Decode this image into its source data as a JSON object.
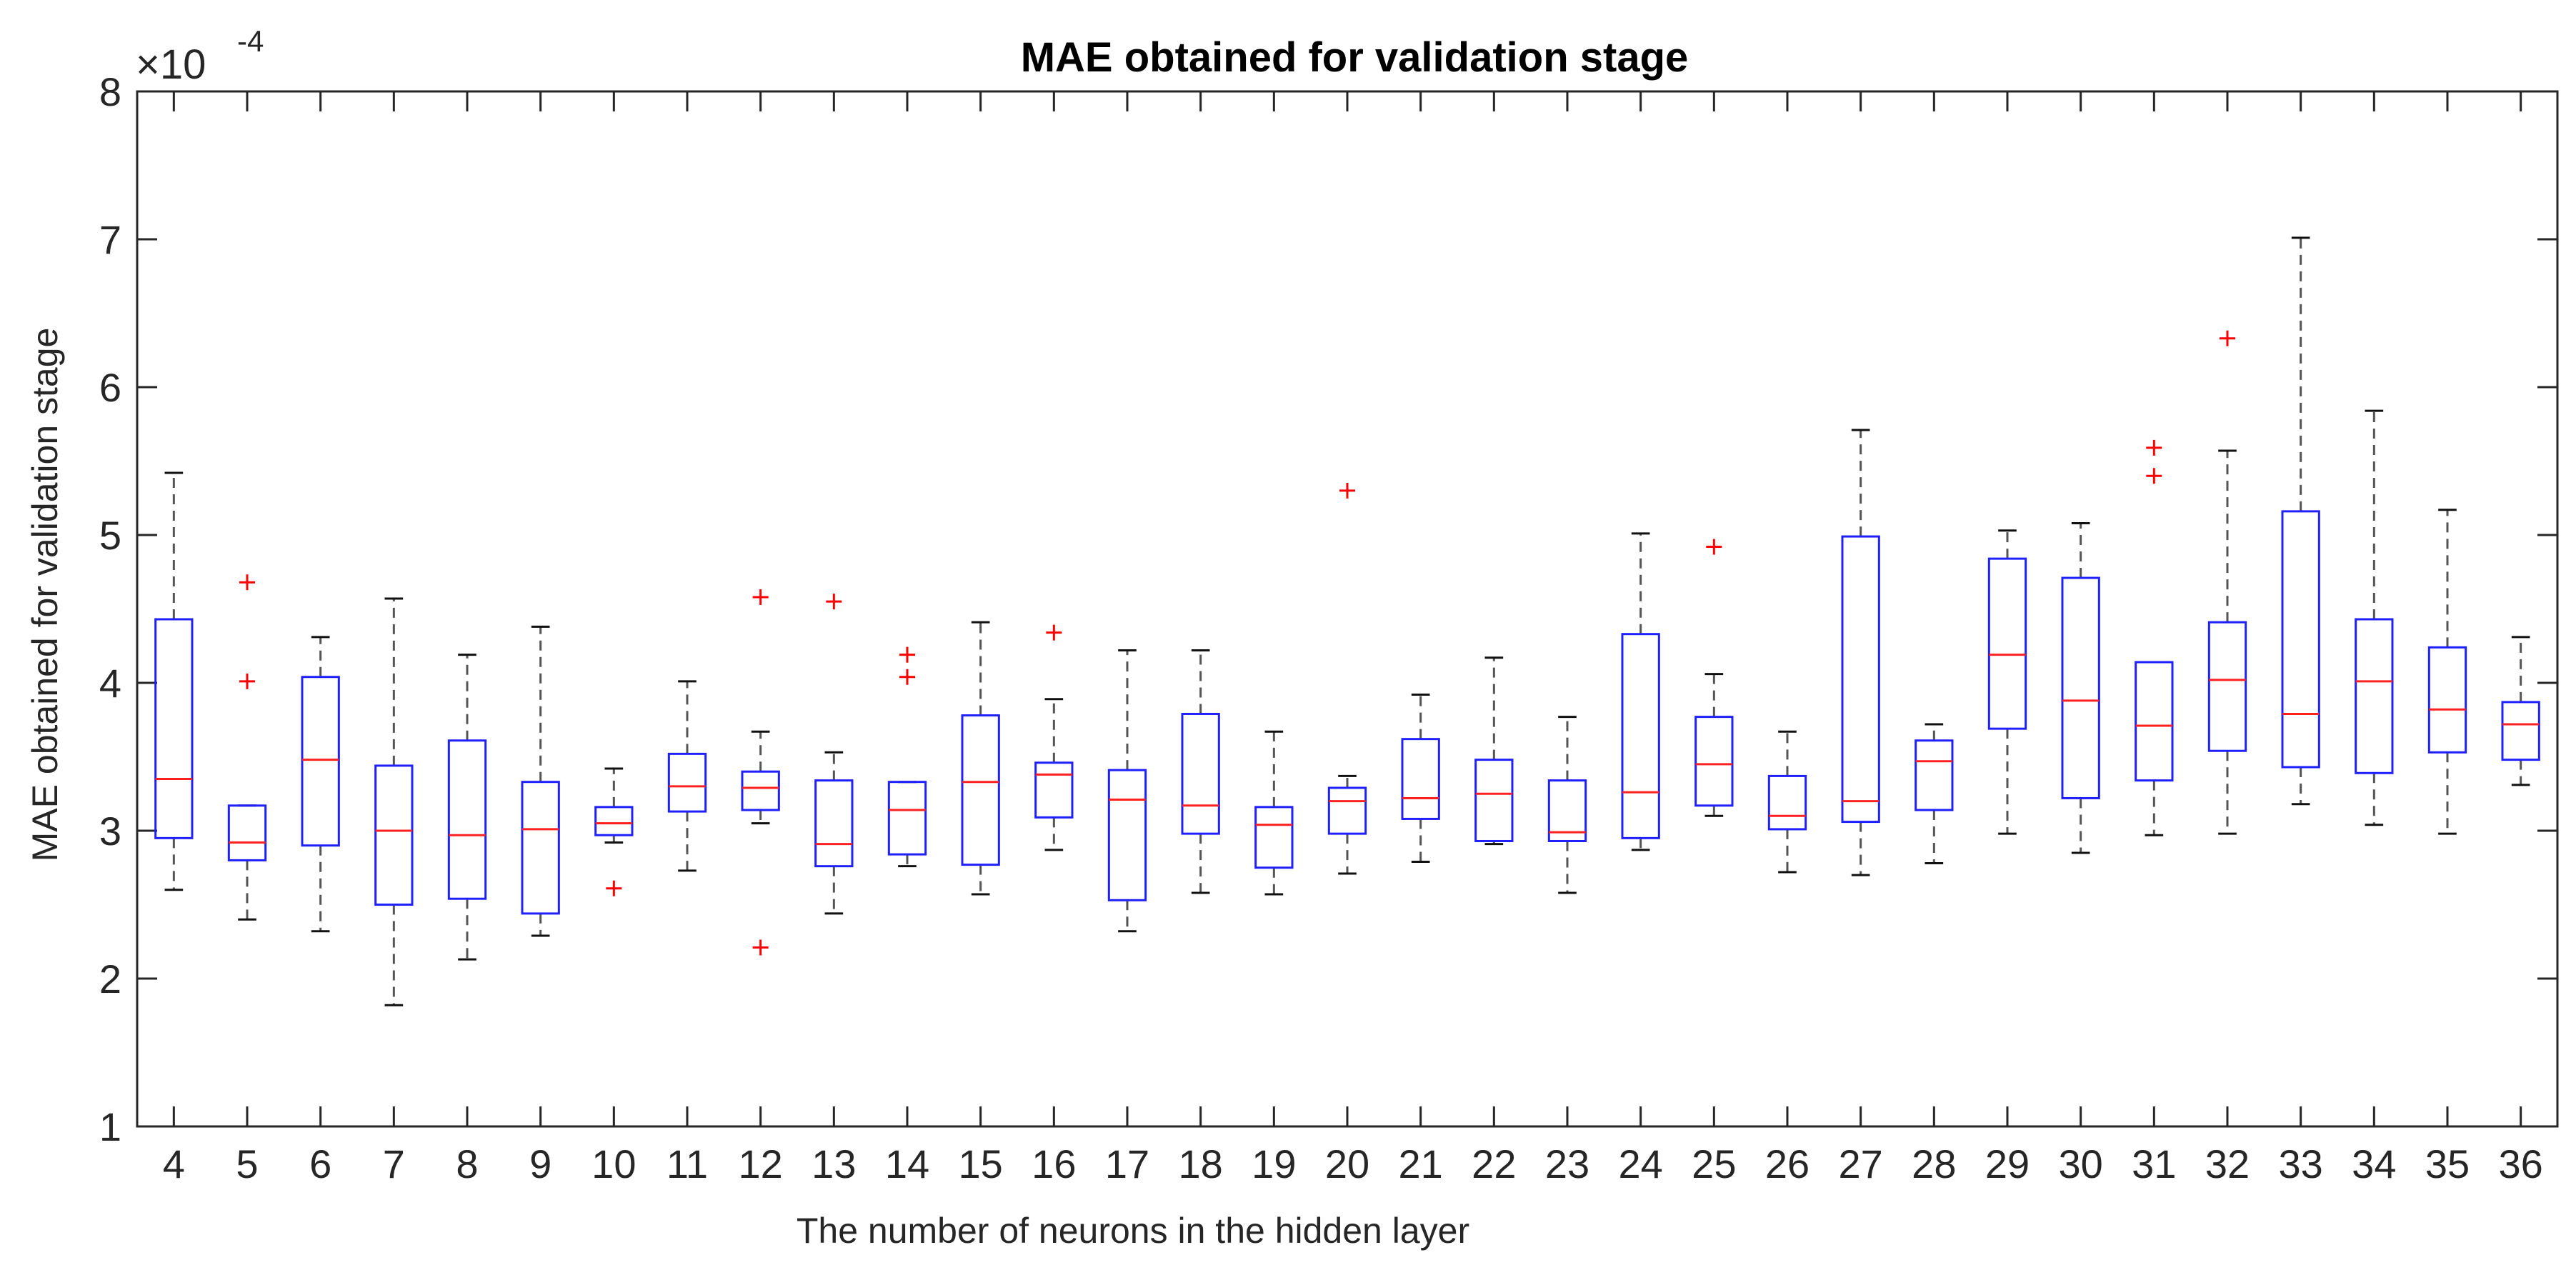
{
  "chart_data": {
    "type": "box",
    "title": "MAE obtained for validation stage",
    "xlabel": "The number of neurons in the hidden layer",
    "ylabel": "MAE obtained for validation stage",
    "y_exponent": {
      "base": "×10",
      "power": "-4"
    },
    "ylim": [
      1,
      8
    ],
    "yticks": [
      1,
      2,
      3,
      4,
      5,
      6,
      7,
      8
    ],
    "grid": false,
    "colors": {
      "box": "#2020ff",
      "median": "#ff2020",
      "whisker": "#555555",
      "outlier": "#ff0000",
      "axis": "#262626"
    },
    "boxes": [
      {
        "label": "4",
        "min": 2.6,
        "q1": 2.95,
        "median": 3.35,
        "q3": 4.43,
        "max": 5.42,
        "outliers": []
      },
      {
        "label": "5",
        "min": 2.4,
        "q1": 2.8,
        "median": 2.92,
        "q3": 3.17,
        "max": 3.17,
        "outliers": [
          4.68,
          4.01
        ]
      },
      {
        "label": "6",
        "min": 2.32,
        "q1": 2.9,
        "median": 3.48,
        "q3": 4.04,
        "max": 4.31,
        "outliers": []
      },
      {
        "label": "7",
        "min": 1.82,
        "q1": 2.5,
        "median": 3.0,
        "q3": 3.44,
        "max": 4.57,
        "outliers": []
      },
      {
        "label": "8",
        "min": 2.13,
        "q1": 2.54,
        "median": 2.97,
        "q3": 3.61,
        "max": 4.19,
        "outliers": []
      },
      {
        "label": "9",
        "min": 2.29,
        "q1": 2.44,
        "median": 3.01,
        "q3": 3.33,
        "max": 4.38,
        "outliers": []
      },
      {
        "label": "10",
        "min": 2.92,
        "q1": 2.97,
        "median": 3.05,
        "q3": 3.16,
        "max": 3.42,
        "outliers": [
          2.61
        ]
      },
      {
        "label": "11",
        "min": 2.73,
        "q1": 3.13,
        "median": 3.3,
        "q3": 3.52,
        "max": 4.01,
        "outliers": []
      },
      {
        "label": "12",
        "min": 3.05,
        "q1": 3.14,
        "median": 3.29,
        "q3": 3.4,
        "max": 3.67,
        "outliers": [
          4.58,
          2.21
        ]
      },
      {
        "label": "13",
        "min": 2.44,
        "q1": 2.76,
        "median": 2.91,
        "q3": 3.34,
        "max": 3.53,
        "outliers": [
          4.55
        ]
      },
      {
        "label": "14",
        "min": 2.76,
        "q1": 2.84,
        "median": 3.14,
        "q3": 3.33,
        "max": 3.33,
        "outliers": [
          4.19,
          4.04
        ]
      },
      {
        "label": "15",
        "min": 2.57,
        "q1": 2.77,
        "median": 3.33,
        "q3": 3.78,
        "max": 4.41,
        "outliers": []
      },
      {
        "label": "16",
        "min": 2.87,
        "q1": 3.09,
        "median": 3.38,
        "q3": 3.46,
        "max": 3.89,
        "outliers": [
          4.34
        ]
      },
      {
        "label": "17",
        "min": 2.32,
        "q1": 2.53,
        "median": 3.21,
        "q3": 3.41,
        "max": 4.22,
        "outliers": []
      },
      {
        "label": "18",
        "min": 2.58,
        "q1": 2.98,
        "median": 3.17,
        "q3": 3.79,
        "max": 4.22,
        "outliers": []
      },
      {
        "label": "19",
        "min": 2.57,
        "q1": 2.75,
        "median": 3.04,
        "q3": 3.16,
        "max": 3.67,
        "outliers": []
      },
      {
        "label": "20",
        "min": 2.71,
        "q1": 2.98,
        "median": 3.2,
        "q3": 3.29,
        "max": 3.37,
        "outliers": [
          5.3
        ]
      },
      {
        "label": "21",
        "min": 2.79,
        "q1": 3.08,
        "median": 3.22,
        "q3": 3.62,
        "max": 3.92,
        "outliers": []
      },
      {
        "label": "22",
        "min": 2.91,
        "q1": 2.93,
        "median": 3.25,
        "q3": 3.48,
        "max": 4.17,
        "outliers": []
      },
      {
        "label": "23",
        "min": 2.58,
        "q1": 2.93,
        "median": 2.99,
        "q3": 3.34,
        "max": 3.77,
        "outliers": []
      },
      {
        "label": "24",
        "min": 2.87,
        "q1": 2.95,
        "median": 3.26,
        "q3": 4.33,
        "max": 5.01,
        "outliers": []
      },
      {
        "label": "25",
        "min": 3.1,
        "q1": 3.17,
        "median": 3.45,
        "q3": 3.77,
        "max": 4.06,
        "outliers": [
          4.92
        ]
      },
      {
        "label": "26",
        "min": 2.72,
        "q1": 3.01,
        "median": 3.1,
        "q3": 3.37,
        "max": 3.67,
        "outliers": []
      },
      {
        "label": "27",
        "min": 2.7,
        "q1": 3.06,
        "median": 3.2,
        "q3": 4.99,
        "max": 5.71,
        "outliers": []
      },
      {
        "label": "28",
        "min": 2.78,
        "q1": 3.14,
        "median": 3.47,
        "q3": 3.61,
        "max": 3.72,
        "outliers": []
      },
      {
        "label": "29",
        "min": 2.98,
        "q1": 3.69,
        "median": 4.19,
        "q3": 4.84,
        "max": 5.03,
        "outliers": []
      },
      {
        "label": "30",
        "min": 2.85,
        "q1": 3.22,
        "median": 3.88,
        "q3": 4.71,
        "max": 5.08,
        "outliers": []
      },
      {
        "label": "31",
        "min": 2.97,
        "q1": 3.34,
        "median": 3.71,
        "q3": 4.14,
        "max": 4.14,
        "outliers": [
          5.59,
          5.4
        ]
      },
      {
        "label": "32",
        "min": 2.98,
        "q1": 3.54,
        "median": 4.02,
        "q3": 4.41,
        "max": 5.57,
        "outliers": [
          6.33
        ]
      },
      {
        "label": "33",
        "min": 3.18,
        "q1": 3.43,
        "median": 3.79,
        "q3": 5.16,
        "max": 7.01,
        "outliers": []
      },
      {
        "label": "34",
        "min": 3.04,
        "q1": 3.39,
        "median": 4.01,
        "q3": 4.43,
        "max": 5.84,
        "outliers": []
      },
      {
        "label": "35",
        "min": 2.98,
        "q1": 3.53,
        "median": 3.82,
        "q3": 4.24,
        "max": 5.17,
        "outliers": []
      },
      {
        "label": "36",
        "min": 3.31,
        "q1": 3.48,
        "median": 3.72,
        "q3": 3.87,
        "max": 4.31,
        "outliers": []
      }
    ]
  }
}
